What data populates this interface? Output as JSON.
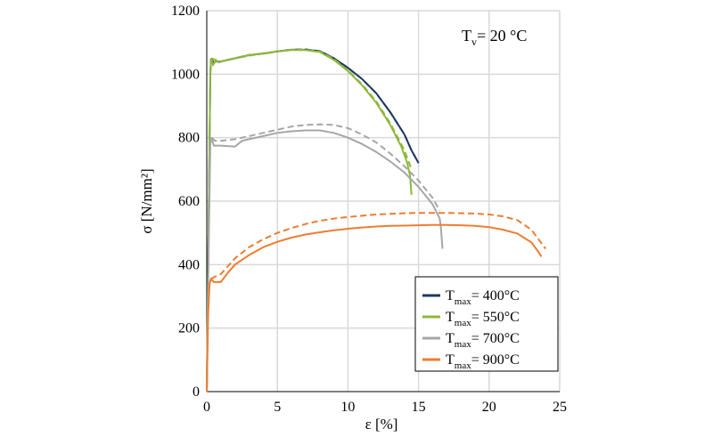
{
  "chart_data": {
    "type": "line",
    "title": "",
    "annotation": {
      "main": "T",
      "sub": "v",
      "rest": "= 20 °C"
    },
    "xlabel": "ε [%]",
    "ylabel": "σ [N/mm²]",
    "xlim": [
      0,
      25
    ],
    "ylim": [
      0,
      1200
    ],
    "xticks": [
      0,
      5,
      10,
      15,
      20,
      25
    ],
    "yticks": [
      0,
      200,
      400,
      600,
      800,
      1000,
      1200
    ],
    "grid": true,
    "legend_position": "bottom-right",
    "series": [
      {
        "name_main": "T",
        "name_sub": "max",
        "name_rest": "= 400°C",
        "color": "#1f3864",
        "solid": [
          [
            0,
            0
          ],
          [
            0.15,
            600
          ],
          [
            0.25,
            1000
          ],
          [
            0.3,
            1050
          ],
          [
            0.45,
            1030
          ],
          [
            0.6,
            1040
          ],
          [
            1,
            1040
          ],
          [
            2,
            1050
          ],
          [
            3,
            1060
          ],
          [
            4,
            1065
          ],
          [
            5,
            1072
          ],
          [
            6,
            1077
          ],
          [
            7,
            1077
          ],
          [
            8,
            1073
          ],
          [
            9,
            1050
          ],
          [
            10,
            1020
          ],
          [
            11,
            985
          ],
          [
            12,
            940
          ],
          [
            13,
            880
          ],
          [
            14,
            810
          ],
          [
            14.5,
            760
          ],
          [
            15,
            720
          ]
        ],
        "dashed": [
          [
            0.3,
            1050
          ],
          [
            0.5,
            1035
          ],
          [
            1,
            1040
          ],
          [
            2,
            1050
          ],
          [
            3,
            1060
          ],
          [
            4,
            1065
          ],
          [
            5,
            1072
          ],
          [
            6,
            1077
          ],
          [
            7,
            1078
          ],
          [
            8,
            1073
          ],
          [
            9,
            1050
          ],
          [
            10,
            1020
          ],
          [
            11,
            985
          ],
          [
            12,
            940
          ],
          [
            13,
            880
          ],
          [
            14,
            810
          ],
          [
            14.5,
            760
          ],
          [
            15,
            720
          ]
        ]
      },
      {
        "name_main": "T",
        "name_sub": "max",
        "name_rest": "= 550°C",
        "color": "#8db83a",
        "solid": [
          [
            0,
            0
          ],
          [
            0.15,
            600
          ],
          [
            0.25,
            1000
          ],
          [
            0.3,
            1050
          ],
          [
            0.45,
            1030
          ],
          [
            0.6,
            1040
          ],
          [
            1,
            1040
          ],
          [
            2,
            1050
          ],
          [
            3,
            1060
          ],
          [
            4,
            1065
          ],
          [
            5,
            1072
          ],
          [
            6,
            1076
          ],
          [
            7,
            1076
          ],
          [
            8,
            1070
          ],
          [
            9,
            1045
          ],
          [
            10,
            1010
          ],
          [
            11,
            965
          ],
          [
            12,
            910
          ],
          [
            13,
            840
          ],
          [
            13.8,
            770
          ],
          [
            14.2,
            720
          ],
          [
            14.4,
            680
          ],
          [
            14.5,
            620
          ]
        ],
        "dashed": [
          [
            0.3,
            1050
          ],
          [
            1,
            1040
          ],
          [
            2,
            1050
          ],
          [
            4,
            1066
          ],
          [
            6,
            1077
          ],
          [
            7,
            1077
          ],
          [
            8,
            1072
          ],
          [
            9,
            1048
          ],
          [
            10,
            1012
          ],
          [
            11,
            968
          ],
          [
            12,
            915
          ],
          [
            13,
            845
          ],
          [
            14,
            760
          ],
          [
            14.5,
            700
          ]
        ]
      },
      {
        "name_main": "T",
        "name_sub": "max",
        "name_rest": "= 700°C",
        "color": "#a6a6a6",
        "solid": [
          [
            0,
            0
          ],
          [
            0.15,
            500
          ],
          [
            0.25,
            780
          ],
          [
            0.35,
            800
          ],
          [
            0.5,
            775
          ],
          [
            1,
            775
          ],
          [
            2,
            772
          ],
          [
            2.5,
            790
          ],
          [
            3,
            795
          ],
          [
            4,
            805
          ],
          [
            5,
            815
          ],
          [
            6,
            820
          ],
          [
            7,
            823
          ],
          [
            8,
            823
          ],
          [
            9,
            815
          ],
          [
            10,
            800
          ],
          [
            11,
            780
          ],
          [
            12,
            755
          ],
          [
            13,
            725
          ],
          [
            14,
            690
          ],
          [
            15,
            645
          ],
          [
            16,
            590
          ],
          [
            16.5,
            545
          ],
          [
            16.6,
            510
          ],
          [
            16.7,
            450
          ]
        ],
        "dashed": [
          [
            0.35,
            800
          ],
          [
            0.6,
            790
          ],
          [
            1,
            790
          ],
          [
            2,
            795
          ],
          [
            3,
            805
          ],
          [
            4,
            815
          ],
          [
            5,
            825
          ],
          [
            6,
            835
          ],
          [
            7,
            840
          ],
          [
            8,
            842
          ],
          [
            9,
            840
          ],
          [
            10,
            830
          ],
          [
            11,
            810
          ],
          [
            12,
            785
          ],
          [
            13,
            750
          ],
          [
            14,
            710
          ],
          [
            15,
            665
          ],
          [
            16,
            610
          ],
          [
            16.5,
            570
          ]
        ]
      },
      {
        "name_main": "T",
        "name_sub": "max",
        "name_rest": "= 900°C",
        "color": "#ed7d31",
        "solid": [
          [
            0,
            0
          ],
          [
            0.1,
            250
          ],
          [
            0.2,
            340
          ],
          [
            0.3,
            355
          ],
          [
            0.5,
            345
          ],
          [
            1,
            345
          ],
          [
            1.5,
            375
          ],
          [
            2,
            400
          ],
          [
            3,
            430
          ],
          [
            4,
            455
          ],
          [
            5,
            472
          ],
          [
            6,
            485
          ],
          [
            7,
            495
          ],
          [
            8,
            502
          ],
          [
            9,
            508
          ],
          [
            10,
            513
          ],
          [
            11,
            517
          ],
          [
            12,
            520
          ],
          [
            13,
            522
          ],
          [
            14,
            523
          ],
          [
            15,
            524
          ],
          [
            16,
            525
          ],
          [
            17,
            525
          ],
          [
            18,
            524
          ],
          [
            19,
            522
          ],
          [
            20,
            518
          ],
          [
            21,
            510
          ],
          [
            22,
            498
          ],
          [
            23,
            470
          ],
          [
            23.5,
            440
          ],
          [
            23.7,
            425
          ]
        ],
        "dashed": [
          [
            0.3,
            355
          ],
          [
            0.5,
            360
          ],
          [
            1,
            370
          ],
          [
            2,
            420
          ],
          [
            3,
            455
          ],
          [
            4,
            480
          ],
          [
            5,
            500
          ],
          [
            6,
            515
          ],
          [
            7,
            528
          ],
          [
            8,
            538
          ],
          [
            9,
            545
          ],
          [
            10,
            550
          ],
          [
            11,
            554
          ],
          [
            12,
            558
          ],
          [
            13,
            560
          ],
          [
            14,
            562
          ],
          [
            15,
            563
          ],
          [
            16,
            563
          ],
          [
            17,
            563
          ],
          [
            18,
            562
          ],
          [
            19,
            561
          ],
          [
            20,
            558
          ],
          [
            21,
            552
          ],
          [
            22,
            540
          ],
          [
            23,
            510
          ],
          [
            23.5,
            480
          ],
          [
            24,
            450
          ]
        ]
      }
    ]
  }
}
